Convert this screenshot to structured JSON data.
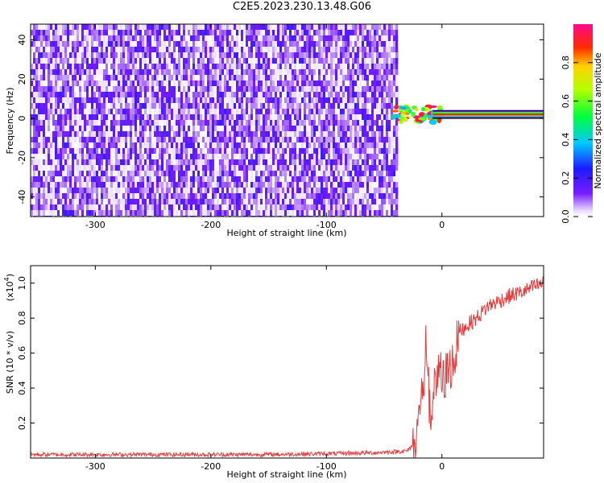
{
  "title": "C2E5.2023.230.13.48.G06",
  "chart_data": [
    {
      "type": "heatmap",
      "title": "C2E5.2023.230.13.48.G06",
      "xlabel": "Height of straight line (km)",
      "ylabel": "Frequency (Hz)",
      "xlim": [
        -356,
        88
      ],
      "ylim": [
        -50,
        48
      ],
      "xticks": [
        -300,
        -200,
        -100,
        0
      ],
      "yticks": [
        -40,
        -20,
        0,
        20,
        40
      ],
      "colorbar": {
        "label": "Normalized spectral amplitude",
        "range": [
          0,
          1
        ],
        "ticks": [
          0.0,
          0.2,
          0.4,
          0.6,
          0.8
        ],
        "colormap": "rainbow (white-violet-blue-cyan-green-yellow-red-magenta)"
      },
      "regions": [
        {
          "name": "noise",
          "x": [
            -356,
            -38
          ],
          "y": [
            -50,
            48
          ],
          "amplitude": [
            0.05,
            0.2
          ]
        },
        {
          "name": "signal-onset",
          "x": [
            -42,
            0
          ],
          "y": [
            -2,
            6
          ],
          "amplitude": [
            0.1,
            1.0
          ]
        },
        {
          "name": "carrier-line",
          "x": [
            -8,
            88
          ],
          "y": [
            0,
            4
          ],
          "amplitude": [
            0.75,
            1.0
          ]
        }
      ],
      "grid": false
    },
    {
      "type": "line",
      "xlabel": "Height of straight line (km)",
      "ylabel": "SNR (10 * v/v)",
      "y_multiplier": "(x10",
      "y_multiplier_exp": "4",
      "xlim": [
        -356,
        88
      ],
      "ylim": [
        0,
        1.1
      ],
      "xticks": [
        -300,
        -200,
        -100,
        0
      ],
      "yticks": [
        0.2,
        0.4,
        0.6,
        0.8,
        1.0
      ],
      "color": "#e83a3a",
      "grid": false,
      "series": [
        {
          "x": [
            -356,
            -300,
            -250,
            -200,
            -150,
            -100,
            -60,
            -30,
            -22,
            -20,
            -18,
            -16,
            -14,
            -12,
            -10,
            -8,
            -6,
            -4,
            -2,
            0,
            5,
            10,
            15,
            20,
            30,
            40,
            50,
            60,
            70,
            80,
            88
          ],
          "y": [
            0.02,
            0.02,
            0.02,
            0.02,
            0.02,
            0.025,
            0.03,
            0.04,
            0.1,
            0.25,
            0.4,
            0.3,
            0.75,
            0.45,
            0.2,
            0.35,
            0.5,
            0.4,
            0.55,
            0.42,
            0.5,
            0.55,
            0.72,
            0.75,
            0.8,
            0.87,
            0.9,
            0.93,
            0.95,
            0.98,
            1.0
          ]
        }
      ]
    }
  ]
}
